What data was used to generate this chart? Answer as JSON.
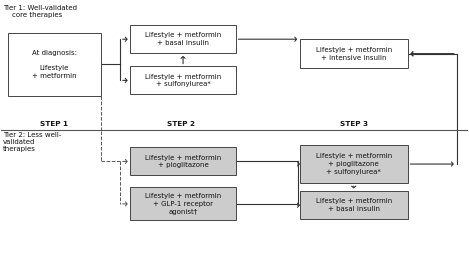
{
  "bg_color": "#ffffff",
  "box_color": "#ffffff",
  "box_edge": "#444444",
  "tier2_box_color": "#cccccc",
  "text_color": "#111111",
  "arrow_color": "#333333",
  "dashed_color": "#555555",
  "tier1_label": "Tier 1: Well-validated\n    core therapies",
  "tier2_label": "Tier 2: Less well-\nvalidated\ntherapies",
  "step1_label": "STEP 1",
  "step2_label": "STEP 2",
  "step3_label": "STEP 3",
  "box_diag": "At diagnosis:\n\nLifestyle\n+ metformin",
  "box_t1_b1": "Lifestyle + metformin\n+ basal insulin",
  "box_t1_b2": "Lifestyle + metformin\n+ sulfonylurea*",
  "box_t1_b3": "Lifestyle + metformin\n+ intensive insulin",
  "box_t2_b1": "Lifestyle + metformin\n+ pioglitazone",
  "box_t2_b2": "Lifestyle + metformin\n+ GLP-1 receptor\nagonist†",
  "box_t2_b3": "Lifestyle + metformin\n+ pioglitazone\n+ sulfonylurea*",
  "box_t2_b4": "Lifestyle + metformin\n+ basal insulin"
}
